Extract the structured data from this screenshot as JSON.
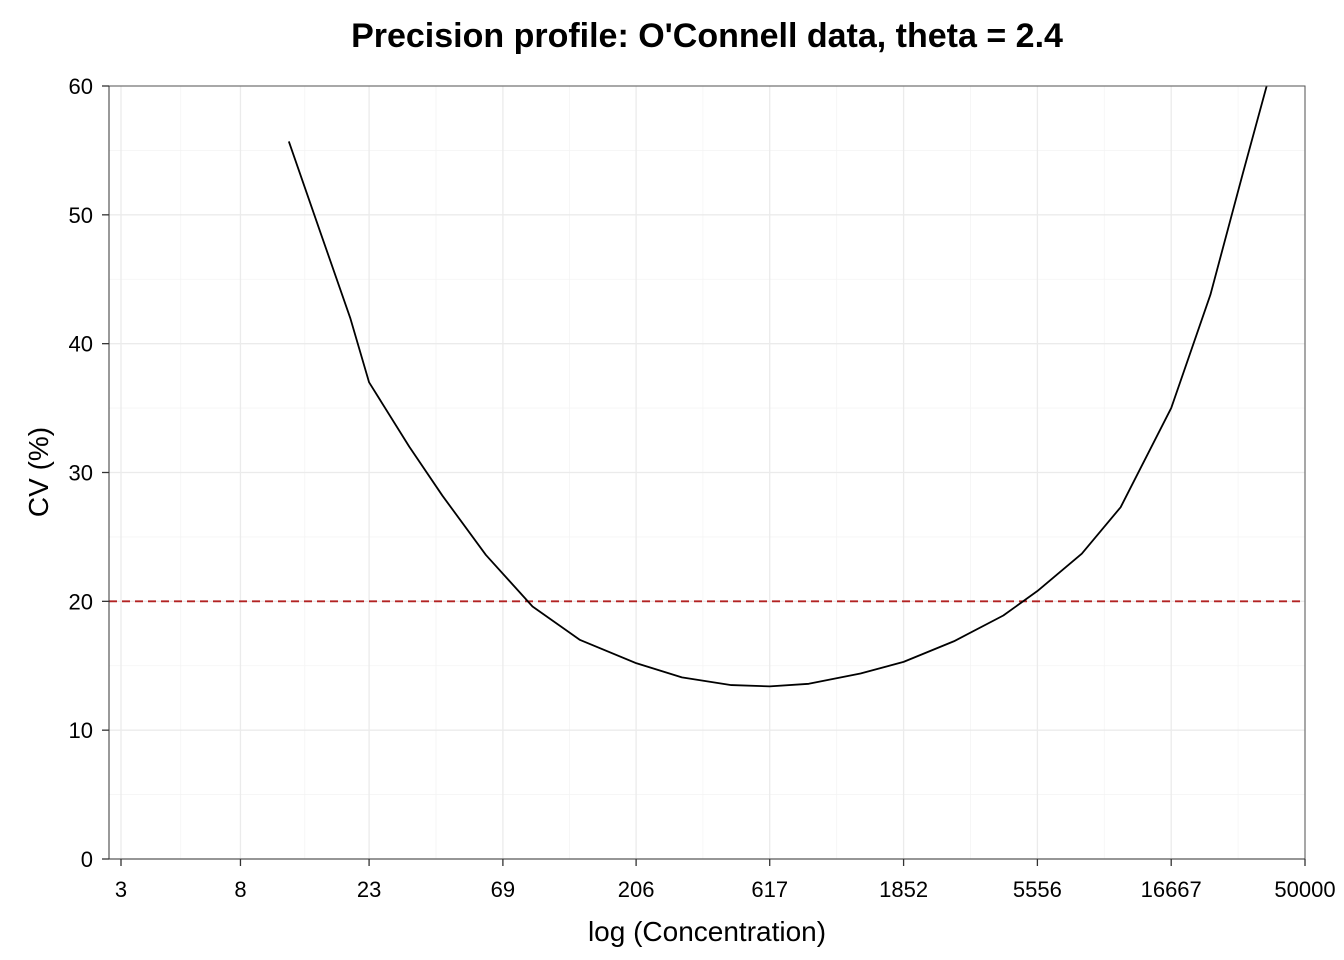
{
  "chart_data": {
    "type": "line",
    "title": "Precision profile: O'Connell data, theta = 2.4",
    "xlabel": "log (Concentration)",
    "ylabel": "CV (%)",
    "x_scale": "log",
    "xlim": [
      3,
      50000
    ],
    "ylim": [
      0,
      60
    ],
    "x_ticks": [
      3,
      8,
      23,
      69,
      206,
      617,
      1852,
      5556,
      16667,
      50000
    ],
    "x_tick_labels": [
      "3",
      "8",
      "23",
      "69",
      "206",
      "617",
      "1852",
      "5556",
      "16667",
      "50000"
    ],
    "y_ticks": [
      0,
      10,
      20,
      30,
      40,
      50,
      60
    ],
    "y_tick_labels": [
      "0",
      "10",
      "20",
      "30",
      "40",
      "50",
      "60"
    ],
    "grid": true,
    "reference_line": {
      "y": 20,
      "color": "#b22222",
      "style": "dashed"
    },
    "series": [
      {
        "color": "#000000",
        "x": [
          11.9,
          15.5,
          19.7,
          23.0,
          32,
          42,
          60,
          88,
          130,
          206,
          300,
          450,
          617,
          850,
          1300,
          1852,
          2800,
          4200,
          5556,
          8000,
          11000,
          16667,
          23000,
          30000,
          36500
        ],
        "values": [
          55.7,
          48.5,
          42.0,
          37.0,
          32.0,
          28.2,
          23.6,
          19.6,
          17.0,
          15.2,
          14.1,
          13.5,
          13.4,
          13.6,
          14.4,
          15.3,
          16.9,
          18.9,
          20.8,
          23.7,
          27.3,
          35.0,
          43.8,
          53.2,
          60.0
        ]
      }
    ]
  }
}
